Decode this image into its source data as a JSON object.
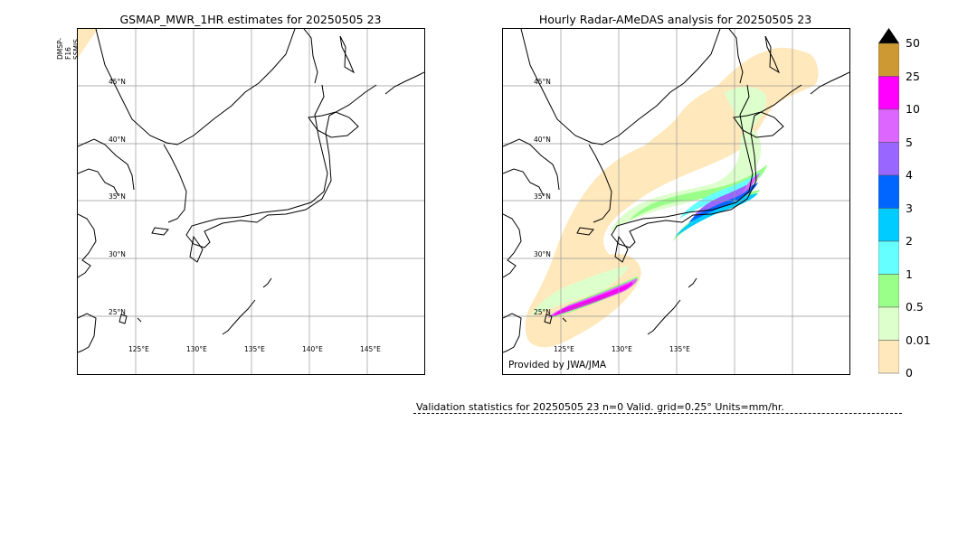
{
  "left_panel": {
    "title": "GSMAP_MWR_1HR estimates for 20250505 23",
    "satellites": [
      "DMSP-F16",
      "SSMIS"
    ],
    "lat_labels": [
      "45°N",
      "40°N",
      "35°N",
      "30°N",
      "25°N"
    ],
    "lon_labels": [
      "125°E",
      "130°E",
      "135°E",
      "140°E",
      "145°E"
    ]
  },
  "right_panel": {
    "title": "Hourly Radar-AMeDAS analysis for 20250505 23",
    "lat_labels": [
      "45°N",
      "40°N",
      "35°N",
      "30°N",
      "25°N"
    ],
    "lon_labels": [
      "125°E",
      "130°E",
      "135°E"
    ],
    "provided_by": "Provided by JWA/JMA"
  },
  "colorbar": {
    "labels": [
      "50",
      "25",
      "10",
      "5",
      "4",
      "3",
      "2",
      "1",
      "0.5",
      "0.01",
      "0"
    ],
    "colors": [
      "#cc9933",
      "#ff00ff",
      "#dd66ff",
      "#9966ff",
      "#0066ff",
      "#00ccff",
      "#66ffff",
      "#99ff88",
      "#ddffcc",
      "#ffe8bb"
    ],
    "extend_color": "#000000"
  },
  "validation": {
    "text": "Validation statistics for 20250505 23  n=0 Valid. grid=0.25° Units=mm/hr."
  }
}
